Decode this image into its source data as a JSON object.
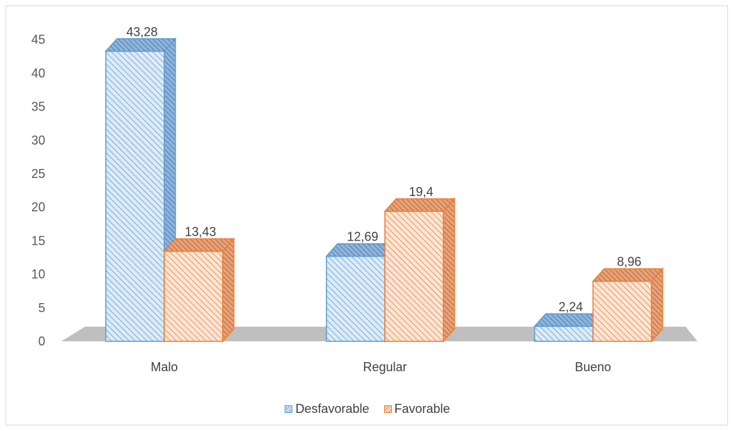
{
  "chart_data": {
    "type": "bar",
    "categories": [
      "Malo",
      "Regular",
      "Bueno"
    ],
    "series": [
      {
        "name": "Desfavorable",
        "values": [
          43.28,
          12.69,
          2.24
        ],
        "labels": [
          "43,28",
          "12,69",
          "2,24"
        ],
        "color": "#5b9bd5",
        "fill": "#ddebf7"
      },
      {
        "name": "Favorable",
        "values": [
          13.43,
          19.4,
          8.96
        ],
        "labels": [
          "13,43",
          "19,4",
          "8,96"
        ],
        "color": "#ed7d31",
        "fill": "#fbe5d6"
      }
    ],
    "yticks": [
      "0",
      "5",
      "10",
      "15",
      "20",
      "25",
      "30",
      "35",
      "40",
      "45"
    ],
    "ylim": [
      0,
      45
    ],
    "grid": false,
    "legend_position": "bottom",
    "floor_color": "#bfbfbf",
    "title": "",
    "xlabel": "",
    "ylabel": ""
  }
}
